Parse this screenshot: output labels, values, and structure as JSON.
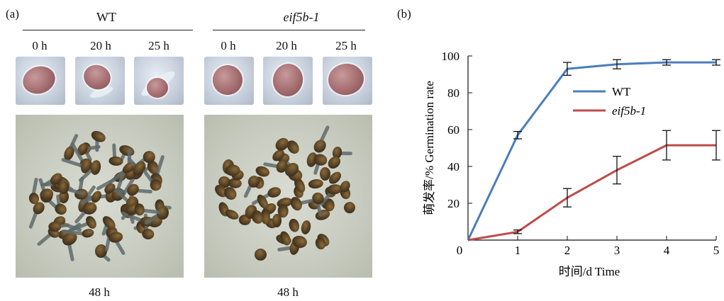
{
  "panel_a": {
    "label": "(a)",
    "groups": [
      {
        "title": "WT",
        "times": [
          "0 h",
          "20 h",
          "25 h"
        ],
        "plate_caption": "48 h"
      },
      {
        "title": "eif5b-1",
        "times": [
          "0 h",
          "20 h",
          "25 h"
        ],
        "plate_caption": "48 h"
      }
    ]
  },
  "panel_b": {
    "label": "(b)"
  },
  "chart_data": {
    "type": "line",
    "x": [
      0,
      1,
      2,
      3,
      4,
      5
    ],
    "xlabel": "时间/d Time",
    "ylabel": "萌发率/% Germination rate",
    "xlim": [
      0,
      5
    ],
    "ylim": [
      0,
      100
    ],
    "x_ticks": [
      "0",
      "1",
      "2",
      "3",
      "4",
      "5"
    ],
    "y_ticks": [
      "20",
      "40",
      "60",
      "80",
      "100"
    ],
    "legend_position": "upper-middle-right",
    "series": [
      {
        "name": "WT",
        "color": "#4a7ebb",
        "values": [
          0,
          57,
          93,
          95.5,
          96.5,
          96.5
        ],
        "errors": [
          0,
          2,
          3.5,
          2.5,
          1.5,
          1.5
        ]
      },
      {
        "name": "eif5b-1",
        "color": "#be4b48",
        "values": [
          0,
          4.5,
          23,
          38,
          51.5,
          51.5
        ],
        "errors": [
          0,
          1,
          5,
          7.5,
          8,
          8
        ]
      }
    ]
  }
}
